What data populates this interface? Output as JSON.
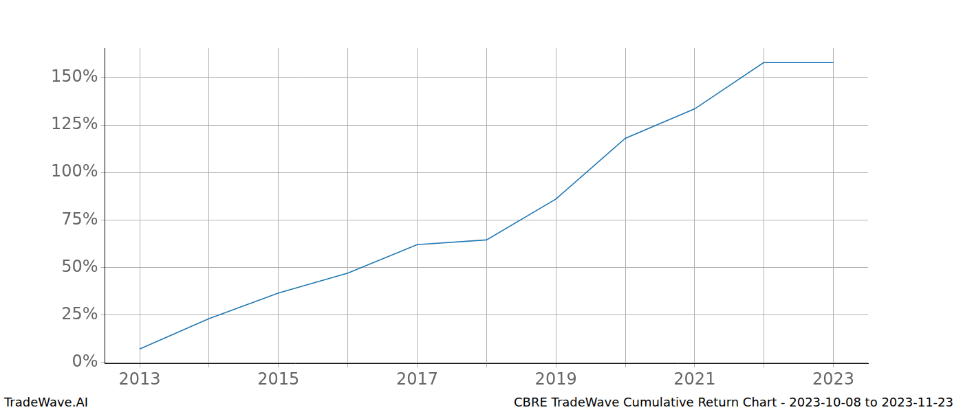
{
  "chart_data": {
    "type": "line",
    "categories": [
      "2013",
      null,
      "2015",
      null,
      "2017",
      null,
      "2019",
      null,
      "2021",
      null,
      "2023"
    ],
    "values": [
      7,
      23,
      36.5,
      47,
      62,
      64.5,
      86,
      118,
      133.5,
      158,
      158
    ],
    "color": "#1f77b4",
    "ylim": [
      -0.55,
      165.55
    ],
    "yticks": [
      {
        "value": 0,
        "label": "0%"
      },
      {
        "value": 25,
        "label": "25%"
      },
      {
        "value": 50,
        "label": "50%"
      },
      {
        "value": 75,
        "label": "75%"
      },
      {
        "value": 100,
        "label": "100%"
      },
      {
        "value": 125,
        "label": "125%"
      },
      {
        "value": 150,
        "label": "150%"
      }
    ],
    "grid": true,
    "source": "TradeWave.AI",
    "caption": "CBRE TradeWave Cumulative Return Chart - 2023-10-08 to 2023-11-23"
  }
}
